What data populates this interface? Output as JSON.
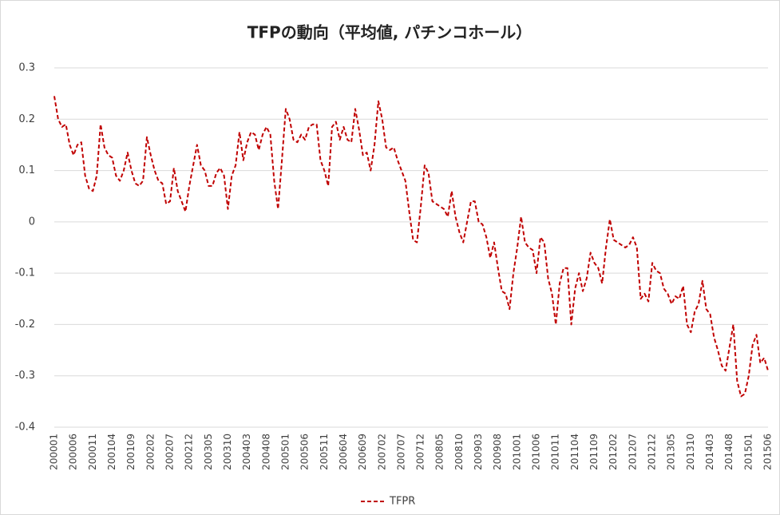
{
  "chart_data": {
    "type": "line",
    "title": "TFPの動向（平均値, パチンコホール）",
    "categories": [
      "200001",
      null,
      null,
      null,
      null,
      "200006",
      null,
      null,
      null,
      null,
      "200011",
      null,
      null,
      null,
      null,
      "200104",
      null,
      null,
      null,
      null,
      "200109",
      null,
      null,
      null,
      null,
      "200202",
      null,
      null,
      null,
      null,
      "200207",
      null,
      null,
      null,
      null,
      "200212",
      null,
      null,
      null,
      null,
      "200305",
      null,
      null,
      null,
      null,
      "200310",
      null,
      null,
      null,
      null,
      "200403",
      null,
      null,
      null,
      null,
      "200408",
      null,
      null,
      null,
      null,
      "200501",
      null,
      null,
      null,
      null,
      "200506",
      null,
      null,
      null,
      null,
      "200511",
      null,
      null,
      null,
      null,
      "200604",
      null,
      null,
      null,
      null,
      "200609",
      null,
      null,
      null,
      null,
      "200702",
      null,
      null,
      null,
      null,
      "200707",
      null,
      null,
      null,
      null,
      "200712",
      null,
      null,
      null,
      null,
      "200805",
      null,
      null,
      null,
      null,
      "200810",
      null,
      null,
      null,
      null,
      "200903",
      null,
      null,
      null,
      null,
      "200908",
      null,
      null,
      null,
      null,
      "201001",
      null,
      null,
      null,
      null,
      "201006",
      null,
      null,
      null,
      null,
      "201011",
      null,
      null,
      null,
      null,
      "201104",
      null,
      null,
      null,
      null,
      "201109",
      null,
      null,
      null,
      null,
      "201202",
      null,
      null,
      null,
      null,
      "201207",
      null,
      null,
      null,
      null,
      "201212",
      null,
      null,
      null,
      null,
      "201305",
      null,
      null,
      null,
      null,
      "201310",
      null,
      null,
      null,
      null,
      "201403",
      null,
      null,
      null,
      null,
      "201408",
      null,
      null,
      null,
      null,
      "201501",
      null,
      null,
      null,
      null,
      "201506"
    ],
    "series": [
      {
        "name": "TFPR",
        "color": "#c00000",
        "values": [
          0.245,
          0.2,
          0.185,
          0.19,
          0.15,
          0.13,
          0.15,
          0.155,
          0.09,
          0.065,
          0.06,
          0.09,
          0.19,
          0.145,
          0.13,
          0.125,
          0.09,
          0.08,
          0.1,
          0.135,
          0.1,
          0.075,
          0.07,
          0.08,
          0.165,
          0.13,
          0.1,
          0.08,
          0.075,
          0.035,
          0.04,
          0.105,
          0.06,
          0.04,
          0.02,
          0.07,
          0.11,
          0.15,
          0.11,
          0.1,
          0.07,
          0.07,
          0.095,
          0.105,
          0.09,
          0.025,
          0.09,
          0.11,
          0.175,
          0.12,
          0.155,
          0.175,
          0.17,
          0.14,
          0.17,
          0.185,
          0.17,
          0.08,
          0.025,
          0.12,
          0.22,
          0.2,
          0.16,
          0.155,
          0.17,
          0.16,
          0.185,
          0.19,
          0.19,
          0.12,
          0.1,
          0.07,
          0.185,
          0.195,
          0.16,
          0.185,
          0.16,
          0.155,
          0.22,
          0.18,
          0.13,
          0.135,
          0.1,
          0.15,
          0.235,
          0.2,
          0.145,
          0.14,
          0.145,
          0.12,
          0.1,
          0.08,
          0.02,
          -0.035,
          -0.04,
          0.03,
          0.11,
          0.095,
          0.04,
          0.035,
          0.03,
          0.025,
          0.01,
          0.06,
          0.01,
          -0.02,
          -0.04,
          0.0,
          0.04,
          0.04,
          0.0,
          -0.005,
          -0.03,
          -0.07,
          -0.04,
          -0.09,
          -0.135,
          -0.14,
          -0.17,
          -0.1,
          -0.05,
          0.01,
          -0.04,
          -0.05,
          -0.055,
          -0.1,
          -0.03,
          -0.04,
          -0.11,
          -0.14,
          -0.2,
          -0.12,
          -0.09,
          -0.09,
          -0.2,
          -0.13,
          -0.1,
          -0.135,
          -0.11,
          -0.06,
          -0.08,
          -0.09,
          -0.12,
          -0.05,
          0.005,
          -0.035,
          -0.04,
          -0.045,
          -0.05,
          -0.045,
          -0.03,
          -0.05,
          -0.15,
          -0.14,
          -0.155,
          -0.08,
          -0.095,
          -0.1,
          -0.13,
          -0.14,
          -0.16,
          -0.145,
          -0.15,
          -0.125,
          -0.2,
          -0.215,
          -0.175,
          -0.16,
          -0.115,
          -0.17,
          -0.18,
          -0.225,
          -0.25,
          -0.28,
          -0.29,
          -0.245,
          -0.2,
          -0.31,
          -0.34,
          -0.335,
          -0.3,
          -0.24,
          -0.22,
          -0.275,
          -0.265,
          -0.29
        ]
      }
    ],
    "ylim": [
      -0.4,
      0.3
    ],
    "yticks": [
      0.3,
      0.2,
      0.1,
      0,
      -0.1,
      -0.2,
      -0.3,
      -0.4
    ],
    "grid": true,
    "legend": "bottom"
  }
}
